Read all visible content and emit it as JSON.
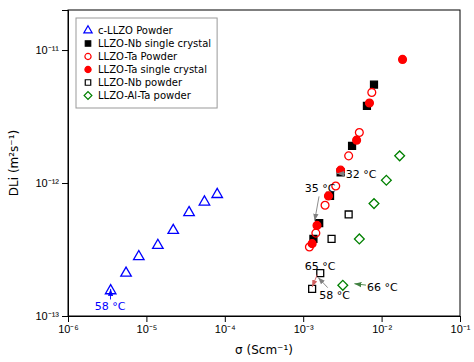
{
  "chart_data": {
    "type": "scatter",
    "x_label": "σ (Scm⁻¹)",
    "y_label": "DLi (m²s⁻¹)",
    "log": true,
    "grid": false,
    "legend": "upper left",
    "xlim": [
      1e-06,
      0.1
    ],
    "ylim": [
      1e-13,
      2e-11
    ],
    "xticks": [
      {
        "value": 1e-06,
        "label": "10⁻⁶"
      },
      {
        "value": 1e-05,
        "label": "10⁻⁵"
      },
      {
        "value": 0.0001,
        "label": "10⁻⁴"
      },
      {
        "value": 0.001,
        "label": "10⁻³"
      },
      {
        "value": 0.01,
        "label": "10⁻²"
      },
      {
        "value": 0.1,
        "label": "10⁻¹"
      }
    ],
    "yticks": [
      {
        "value": 1e-13,
        "label": "10⁻¹³"
      },
      {
        "value": 1e-12,
        "label": "10⁻¹²"
      },
      {
        "value": 1e-11,
        "label": "10⁻¹¹"
      }
    ],
    "series": [
      {
        "name": "c-LLZO Powder",
        "color": "blue",
        "marker": "triangle-open",
        "x": [
          3.5e-06,
          5.5e-06,
          8e-06,
          1.4e-05,
          2.2e-05,
          3.5e-05,
          5.5e-05,
          8e-05
        ],
        "values": [
          1.55e-13,
          2.1e-13,
          2.8e-13,
          3.4e-13,
          4.4e-13,
          6e-13,
          7.2e-13,
          8.2e-13
        ]
      },
      {
        "name": "LLZO-Nb single crystal",
        "color": "black",
        "marker": "square",
        "x": [
          0.00135,
          0.0016,
          0.0022,
          0.003,
          0.0042,
          0.0065,
          0.008
        ],
        "values": [
          3.8e-13,
          5e-13,
          8e-13,
          1.2e-12,
          1.9e-12,
          3.8e-12,
          5.5e-12
        ]
      },
      {
        "name": "LLZO-Ta Powder",
        "color": "red",
        "marker": "circle-open",
        "x": [
          0.0012,
          0.00145,
          0.0019,
          0.0026,
          0.0038,
          0.0052,
          0.0075
        ],
        "values": [
          3.3e-13,
          4.2e-13,
          6.8e-13,
          9.5e-13,
          1.6e-12,
          2.4e-12,
          4.8e-12
        ]
      },
      {
        "name": "LLZO-Ta single crystal",
        "color": "red",
        "marker": "circle",
        "x": [
          0.0013,
          0.0015,
          0.0021,
          0.003,
          0.0048,
          0.007,
          0.0185
        ],
        "values": [
          3.5e-13,
          4.8e-13,
          8e-13,
          1.25e-12,
          2.1e-12,
          4e-12,
          8.5e-12
        ]
      },
      {
        "name": "LLZO-Nb powder",
        "color": "black",
        "marker": "square-open",
        "x": [
          0.0013,
          0.00165,
          0.0023,
          0.0038
        ],
        "values": [
          1.6e-13,
          2.1e-13,
          3.8e-13,
          5.8e-13
        ]
      },
      {
        "name": "LLZO-Al-Ta powder",
        "color": "green",
        "marker": "diamond-open",
        "x": [
          0.0032,
          0.0052,
          0.008,
          0.0115,
          0.017
        ],
        "values": [
          1.7e-13,
          3.8e-13,
          7e-13,
          1.05e-12,
          1.6e-12
        ]
      }
    ],
    "annotations": [
      {
        "text": "32 °C",
        "x": 0.0035,
        "y": 1.1e-12,
        "arrow_x": 0.0027,
        "arrow_y": 1.18e-12,
        "color": "black",
        "arrow_color": "gray"
      },
      {
        "text": "35 °C",
        "x": 0.00105,
        "y": 8.5e-13,
        "arrow_x": 0.0014,
        "arrow_y": 5.2e-13,
        "color": "black",
        "arrow_color": "gray"
      },
      {
        "text": "65 °C",
        "x": 0.00105,
        "y": 2.2e-13,
        "arrow_x": 0.0013,
        "arrow_y": 1.65e-13,
        "color": "black",
        "arrow_color": "#d06060"
      },
      {
        "text": "58 °C",
        "x": 0.0016,
        "y": 1.35e-13,
        "arrow_x": 0.00155,
        "arrow_y": 1.95e-13,
        "color": "black",
        "arrow_color": "gray"
      },
      {
        "text": "66 °C",
        "x": 0.0065,
        "y": 1.55e-13,
        "arrow_x": 0.0045,
        "arrow_y": 1.75e-13,
        "color": "black",
        "arrow_color": "#408040"
      },
      {
        "text": "58 °C",
        "x": 2.2e-06,
        "y": 1.1e-13,
        "arrow_x": 3.5e-06,
        "arrow_y": 1.6e-13,
        "color": "blue",
        "arrow_color": "blue"
      }
    ]
  }
}
